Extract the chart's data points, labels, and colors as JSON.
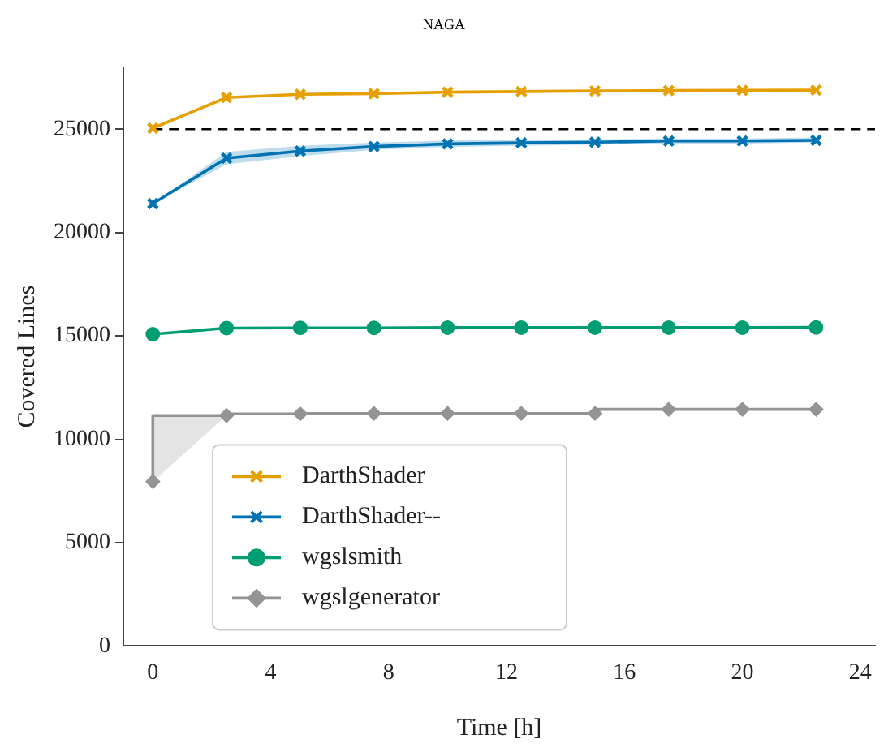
{
  "chart_data": {
    "type": "line",
    "title": "naga",
    "xlabel": "Time [h]",
    "ylabel": "Covered Lines",
    "xlim": [
      -1,
      24.5
    ],
    "xticks": [
      0,
      4,
      8,
      12,
      16,
      20,
      24
    ],
    "ylim": [
      0,
      28000
    ],
    "yticks": [
      0,
      5000,
      10000,
      15000,
      20000,
      25000
    ],
    "grid": false,
    "legend": "bottom left",
    "line_style": "solid",
    "ref_lines": [
      {
        "axis": "y",
        "value": 25000,
        "color": "#000000",
        "line_style": "dashed"
      }
    ],
    "series": [
      {
        "name": "DarthShader",
        "color": "#e69f00",
        "marker": "cross",
        "x": [
          0,
          2.5,
          5,
          7.5,
          10,
          12.5,
          15,
          17.5,
          20,
          22.5
        ],
        "values": [
          25050,
          26530,
          26690,
          26720,
          26790,
          26820,
          26850,
          26870,
          26880,
          26890
        ]
      },
      {
        "name": "DarthShader--",
        "color": "#0173b2",
        "marker": "cross",
        "x": [
          0,
          2.5,
          5,
          7.5,
          10,
          12.5,
          15,
          17.5,
          20,
          22.5
        ],
        "values": [
          21400,
          23600,
          23940,
          24160,
          24290,
          24340,
          24370,
          24430,
          24430,
          24460
        ],
        "lower": [
          21400,
          23300,
          23700,
          24000,
          24150,
          24200,
          24250,
          24300,
          24300,
          24350
        ],
        "upper": [
          21400,
          23900,
          24200,
          24350,
          24450,
          24500,
          24500,
          24550,
          24550,
          24600
        ]
      },
      {
        "name": "wgslsmith",
        "color": "#029e73",
        "marker": "circle",
        "x": [
          0,
          2.5,
          5,
          7.5,
          10,
          12.5,
          15,
          17.5,
          20,
          22.5
        ],
        "values": [
          15080,
          15380,
          15390,
          15390,
          15400,
          15400,
          15400,
          15400,
          15400,
          15410
        ]
      },
      {
        "name": "wgslgenerator",
        "color": "#949494",
        "type": "step",
        "marker": "diamond",
        "x": [
          0,
          2.5,
          5,
          7.5,
          10,
          12.5,
          15,
          17.5,
          20,
          22.5
        ],
        "values": [
          7950,
          11150,
          11230,
          11250,
          11250,
          11250,
          11250,
          11450,
          11450,
          11450
        ],
        "lower": [
          7950,
          11150,
          null,
          null,
          null,
          null,
          null,
          null,
          null,
          null
        ],
        "upper": [
          11100,
          11200,
          null,
          null,
          null,
          null,
          null,
          null,
          null,
          null
        ]
      }
    ]
  }
}
